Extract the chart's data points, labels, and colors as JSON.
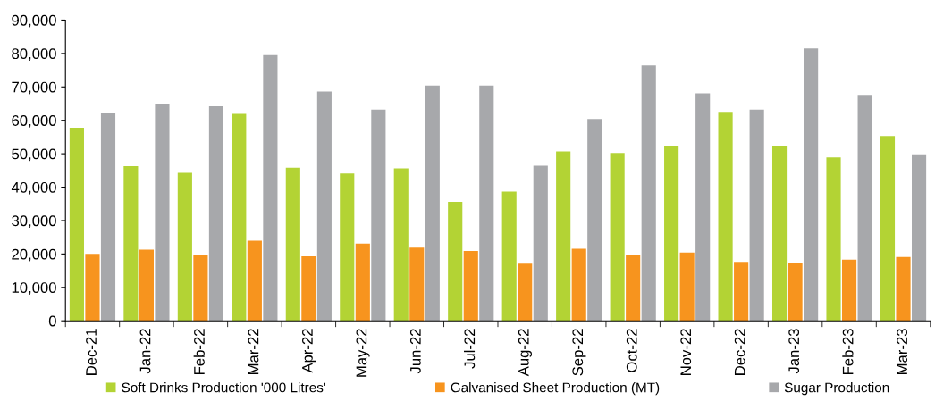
{
  "chart_data": {
    "type": "bar",
    "categories": [
      "Dec-21",
      "Jan-22",
      "Feb-22",
      "Mar-22",
      "Apr-22",
      "May-22",
      "Jun-22",
      "Jul-22",
      "Aug-22",
      "Sep-22",
      "Oct-22",
      "Nov-22",
      "Dec-22",
      "Jan-23",
      "Feb-23",
      "Mar-23"
    ],
    "series": [
      {
        "name": "Soft Drinks Production '000 Litres'",
        "color": "#b3d334",
        "values": [
          57800,
          46300,
          44300,
          61900,
          45800,
          44100,
          45600,
          35600,
          38700,
          50700,
          50200,
          52200,
          62500,
          52400,
          48900,
          55300
        ]
      },
      {
        "name": "Galvanised Sheet Production (MT)",
        "color": "#f7941e",
        "values": [
          20000,
          21300,
          19600,
          24000,
          19300,
          23100,
          21900,
          20900,
          17100,
          21600,
          19600,
          20400,
          17600,
          17300,
          18300,
          19100
        ]
      },
      {
        "name": "Sugar Production",
        "color": "#a7a8ab",
        "values": [
          62200,
          64800,
          64200,
          79500,
          68600,
          63200,
          70400,
          70400,
          46400,
          60400,
          76400,
          68100,
          63200,
          81500,
          67600,
          49800
        ]
      }
    ],
    "ylim": [
      0,
      90000
    ],
    "yticks": [
      {
        "value": 0,
        "label": "0"
      },
      {
        "value": 10000,
        "label": "10,000"
      },
      {
        "value": 20000,
        "label": "20,000"
      },
      {
        "value": 30000,
        "label": "30,000"
      },
      {
        "value": 40000,
        "label": "40,000"
      },
      {
        "value": 50000,
        "label": "50,000"
      },
      {
        "value": 60000,
        "label": "60,000"
      },
      {
        "value": 70000,
        "label": "70,000"
      },
      {
        "value": 80000,
        "label": "80,000"
      },
      {
        "value": 90000,
        "label": "90,000"
      }
    ],
    "grid": false,
    "legend": "bottom"
  }
}
